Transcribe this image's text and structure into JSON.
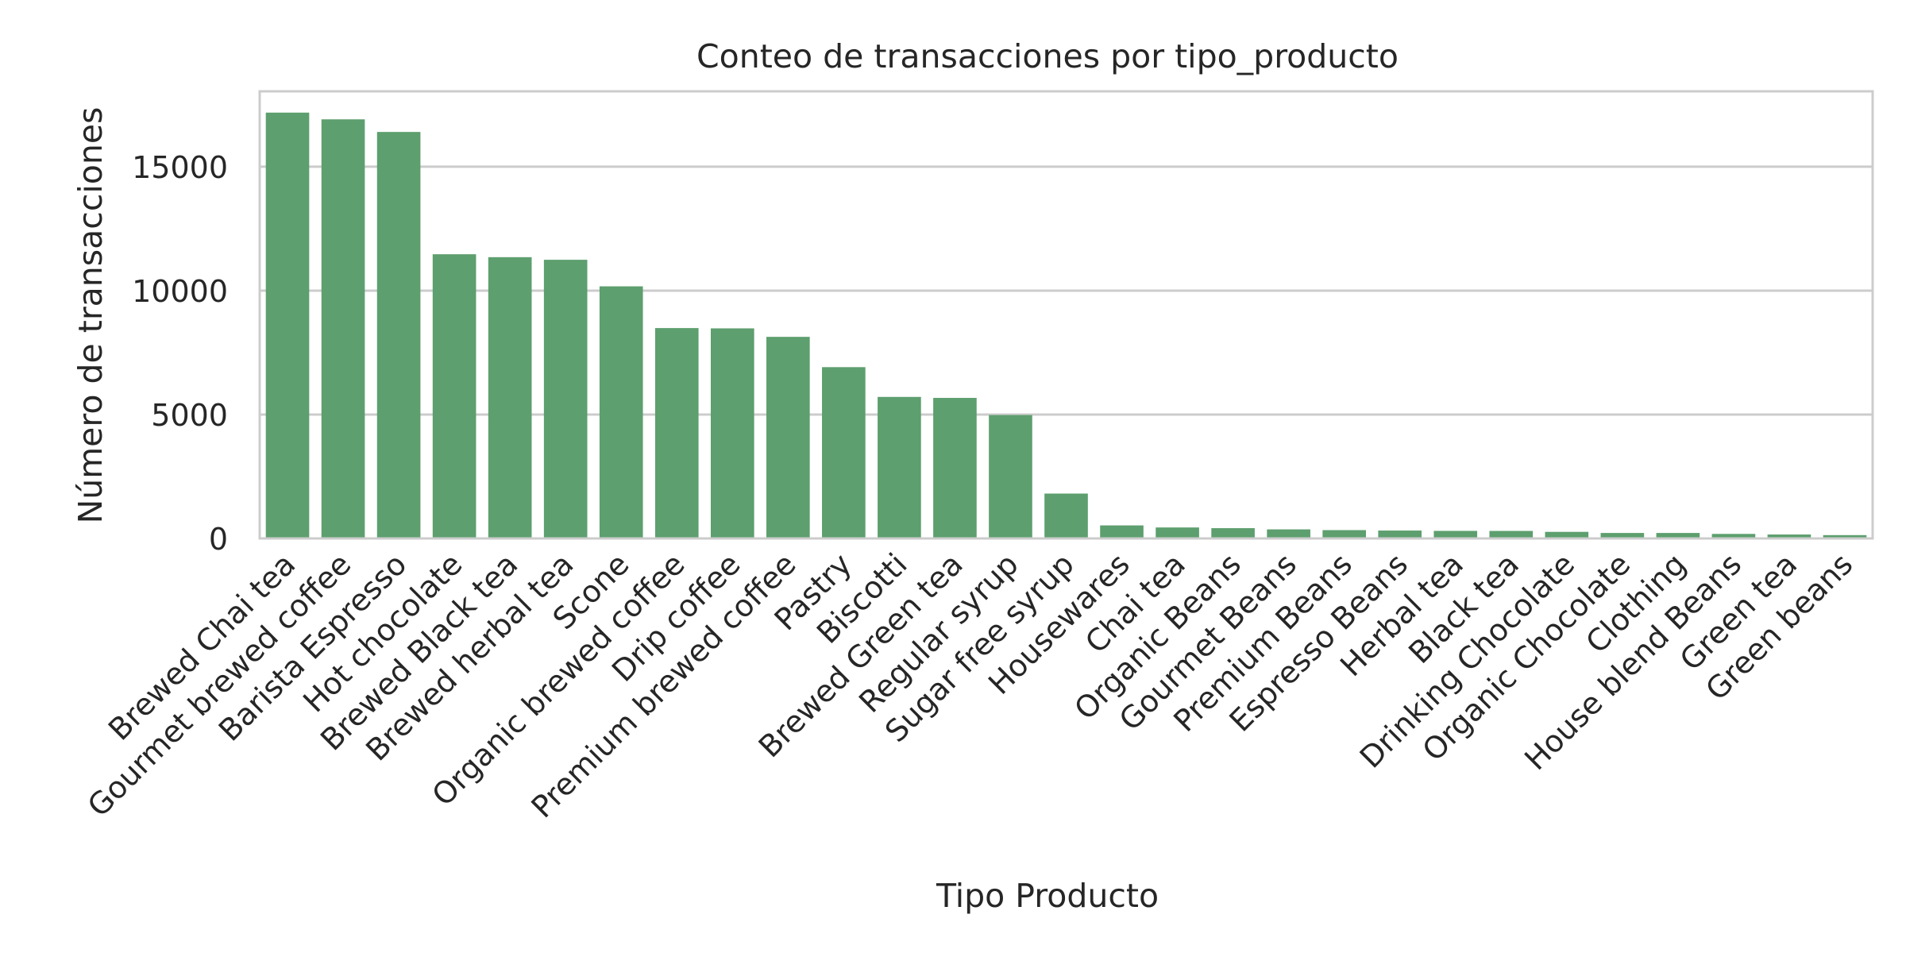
{
  "chart_data": {
    "type": "bar",
    "title": "Conteo de transacciones por tipo_producto",
    "xlabel": "Tipo Producto",
    "ylabel": "Número de transacciones",
    "categories": [
      "Brewed Chai tea",
      "Gourmet brewed coffee",
      "Barista Espresso",
      "Hot chocolate",
      "Brewed Black tea",
      "Brewed herbal tea",
      "Scone",
      "Organic brewed coffee",
      "Drip coffee",
      "Premium brewed coffee",
      "Pastry",
      "Biscotti",
      "Brewed Green tea",
      "Regular syrup",
      "Sugar free syrup",
      "Housewares",
      "Chai tea",
      "Organic Beans",
      "Gourmet Beans",
      "Premium Beans",
      "Espresso Beans",
      "Herbal tea",
      "Black tea",
      "Drinking Chocolate",
      "Organic Chocolate",
      "Clothing",
      "House blend Beans",
      "Green tea",
      "Green beans"
    ],
    "values": [
      17183,
      16912,
      16403,
      11468,
      11350,
      11245,
      10173,
      8489,
      8477,
      8135,
      6912,
      5711,
      5671,
      4979,
      1811,
      526,
      443,
      415,
      366,
      336,
      319,
      305,
      303,
      266,
      221,
      221,
      183,
      159,
      134
    ],
    "yticks": [
      0,
      5000,
      10000,
      15000
    ],
    "ylim": [
      0,
      18042
    ],
    "grid": "horizontal",
    "bar_color": "#5d9f6e",
    "grid_color": "#cccccc",
    "spine_color": "#cccccc"
  }
}
